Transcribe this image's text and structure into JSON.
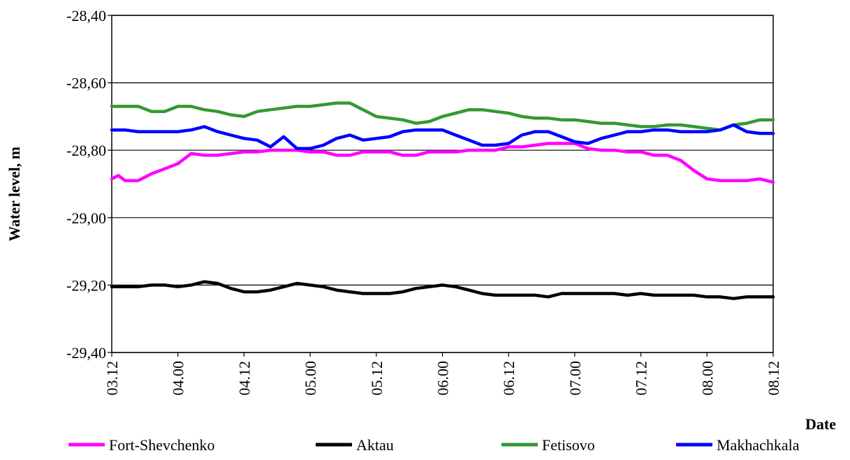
{
  "chart_data": {
    "type": "line",
    "xlabel": "Date",
    "ylabel": "Water level, m",
    "ylim": [
      -29.4,
      -28.4
    ],
    "y_ticks": [
      {
        "value": -28.4,
        "label": "-28,40"
      },
      {
        "value": -28.6,
        "label": "-28,60"
      },
      {
        "value": -28.8,
        "label": "-28,80"
      },
      {
        "value": -29.0,
        "label": "-29,00"
      },
      {
        "value": -29.2,
        "label": "-29,20"
      },
      {
        "value": -29.4,
        "label": "-29,40"
      }
    ],
    "x_ticks": [
      "03.12",
      "04.00",
      "04.12",
      "05.00",
      "05.12",
      "06.00",
      "06.12",
      "07.00",
      "07.12",
      "08.00",
      "08.12"
    ],
    "grid": "horizontal",
    "legend_position": "bottom",
    "series": [
      {
        "name": "Fort-Shevchenko",
        "color": "#ff00ff",
        "x": [
          0,
          0.1,
          0.2,
          0.4,
          0.6,
          0.8,
          1.0,
          1.2,
          1.4,
          1.6,
          1.8,
          2.0,
          2.2,
          2.4,
          2.6,
          2.8,
          3.0,
          3.2,
          3.4,
          3.6,
          3.8,
          4.0,
          4.2,
          4.4,
          4.6,
          4.8,
          5.0,
          5.2,
          5.4,
          5.6,
          5.8,
          6.0,
          6.2,
          6.4,
          6.6,
          6.8,
          7.0,
          7.2,
          7.4,
          7.6,
          7.8,
          8.0,
          8.2,
          8.4,
          8.6,
          8.8,
          9.0,
          9.2,
          9.4,
          9.6,
          9.8,
          10.0
        ],
        "values": [
          -28.885,
          -28.875,
          -28.89,
          -28.89,
          -28.87,
          -28.855,
          -28.84,
          -28.81,
          -28.815,
          -28.815,
          -28.81,
          -28.805,
          -28.805,
          -28.8,
          -28.8,
          -28.8,
          -28.805,
          -28.805,
          -28.815,
          -28.815,
          -28.805,
          -28.805,
          -28.805,
          -28.815,
          -28.815,
          -28.805,
          -28.805,
          -28.805,
          -28.8,
          -28.8,
          -28.8,
          -28.79,
          -28.79,
          -28.785,
          -28.78,
          -28.78,
          -28.78,
          -28.795,
          -28.8,
          -28.8,
          -28.805,
          -28.805,
          -28.815,
          -28.815,
          -28.83,
          -28.86,
          -28.885,
          -28.89,
          -28.89,
          -28.89,
          -28.885,
          -28.895
        ]
      },
      {
        "name": "Aktau",
        "color": "#000000",
        "x": [
          0,
          0.2,
          0.4,
          0.6,
          0.8,
          1.0,
          1.2,
          1.4,
          1.6,
          1.8,
          2.0,
          2.2,
          2.4,
          2.6,
          2.8,
          3.0,
          3.2,
          3.4,
          3.6,
          3.8,
          4.0,
          4.2,
          4.4,
          4.6,
          4.8,
          5.0,
          5.2,
          5.4,
          5.6,
          5.8,
          6.0,
          6.2,
          6.4,
          6.6,
          6.8,
          7.0,
          7.2,
          7.4,
          7.6,
          7.8,
          8.0,
          8.2,
          8.4,
          8.6,
          8.8,
          9.0,
          9.2,
          9.4,
          9.6,
          9.8,
          10.0
        ],
        "values": [
          -29.205,
          -29.205,
          -29.205,
          -29.2,
          -29.2,
          -29.205,
          -29.2,
          -29.19,
          -29.195,
          -29.21,
          -29.22,
          -29.22,
          -29.215,
          -29.205,
          -29.195,
          -29.2,
          -29.205,
          -29.215,
          -29.22,
          -29.225,
          -29.225,
          -29.225,
          -29.22,
          -29.21,
          -29.205,
          -29.2,
          -29.205,
          -29.215,
          -29.225,
          -29.23,
          -29.23,
          -29.23,
          -29.23,
          -29.235,
          -29.225,
          -29.225,
          -29.225,
          -29.225,
          -29.225,
          -29.23,
          -29.225,
          -29.23,
          -29.23,
          -29.23,
          -29.23,
          -29.235,
          -29.235,
          -29.24,
          -29.235,
          -29.235,
          -29.235
        ]
      },
      {
        "name": "Fetisovo",
        "color": "#339933",
        "x": [
          0,
          0.2,
          0.4,
          0.6,
          0.8,
          1.0,
          1.2,
          1.4,
          1.6,
          1.8,
          2.0,
          2.2,
          2.4,
          2.6,
          2.8,
          3.0,
          3.2,
          3.4,
          3.6,
          3.8,
          4.0,
          4.2,
          4.4,
          4.6,
          4.8,
          5.0,
          5.2,
          5.4,
          5.6,
          5.8,
          6.0,
          6.2,
          6.4,
          6.6,
          6.8,
          7.0,
          7.2,
          7.4,
          7.6,
          7.8,
          8.0,
          8.2,
          8.4,
          8.6,
          8.8,
          9.0,
          9.2,
          9.4,
          9.6,
          9.8,
          10.0
        ],
        "values": [
          -28.67,
          -28.67,
          -28.67,
          -28.685,
          -28.685,
          -28.67,
          -28.67,
          -28.68,
          -28.685,
          -28.695,
          -28.7,
          -28.685,
          -28.68,
          -28.675,
          -28.67,
          -28.67,
          -28.665,
          -28.66,
          -28.66,
          -28.68,
          -28.7,
          -28.705,
          -28.71,
          -28.72,
          -28.715,
          -28.7,
          -28.69,
          -28.68,
          -28.68,
          -28.685,
          -28.69,
          -28.7,
          -28.705,
          -28.705,
          -28.71,
          -28.71,
          -28.715,
          -28.72,
          -28.72,
          -28.725,
          -28.73,
          -28.73,
          -28.725,
          -28.725,
          -28.73,
          -28.735,
          -28.74,
          -28.725,
          -28.72,
          -28.71,
          -28.71
        ]
      },
      {
        "name": "Makhachkala",
        "color": "#0000ff",
        "x": [
          0,
          0.2,
          0.4,
          0.6,
          0.8,
          1.0,
          1.2,
          1.4,
          1.6,
          1.8,
          2.0,
          2.2,
          2.4,
          2.6,
          2.8,
          3.0,
          3.2,
          3.4,
          3.6,
          3.8,
          4.0,
          4.2,
          4.4,
          4.6,
          4.8,
          5.0,
          5.2,
          5.4,
          5.6,
          5.8,
          6.0,
          6.2,
          6.4,
          6.6,
          6.8,
          7.0,
          7.2,
          7.4,
          7.6,
          7.8,
          8.0,
          8.2,
          8.4,
          8.6,
          8.8,
          9.0,
          9.2,
          9.4,
          9.6,
          9.8,
          10.0
        ],
        "values": [
          -28.74,
          -28.74,
          -28.745,
          -28.745,
          -28.745,
          -28.745,
          -28.74,
          -28.73,
          -28.745,
          -28.755,
          -28.765,
          -28.77,
          -28.79,
          -28.76,
          -28.795,
          -28.795,
          -28.785,
          -28.765,
          -28.755,
          -28.77,
          -28.765,
          -28.76,
          -28.745,
          -28.74,
          -28.74,
          -28.74,
          -28.755,
          -28.77,
          -28.785,
          -28.785,
          -28.78,
          -28.755,
          -28.745,
          -28.745,
          -28.76,
          -28.775,
          -28.78,
          -28.765,
          -28.755,
          -28.745,
          -28.745,
          -28.74,
          -28.74,
          -28.745,
          -28.745,
          -28.745,
          -28.74,
          -28.725,
          -28.745,
          -28.75,
          -28.75
        ]
      }
    ]
  }
}
